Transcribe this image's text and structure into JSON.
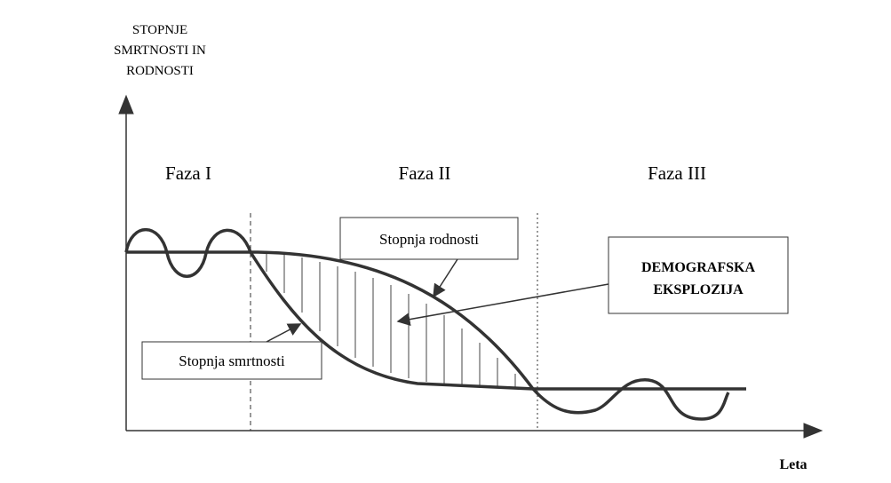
{
  "y_axis_label": [
    "STOPNJE",
    "SMRTNOSTI IN",
    "RODNOSTI"
  ],
  "x_axis_label": "Leta",
  "phases": [
    "Faza I",
    "Faza II",
    "Faza III"
  ],
  "labels": {
    "birth_rate": "Stopnja rodnosti",
    "death_rate": "Stopnja smrtnosti",
    "explosion": [
      "DEMOGRAFSKA",
      "EKSPLOZIJA"
    ]
  }
}
